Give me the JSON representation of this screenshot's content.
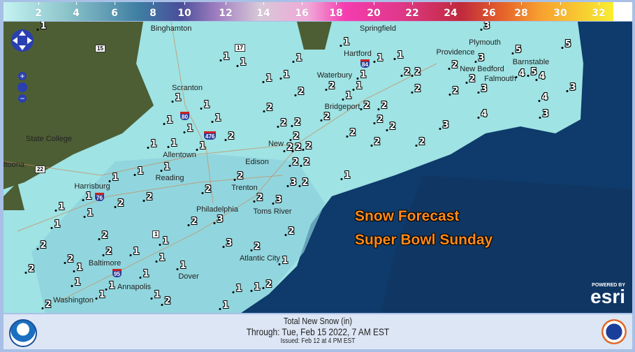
{
  "legend": {
    "ticks": [
      "2",
      "4",
      "6",
      "8",
      "10",
      "12",
      "14",
      "16",
      "18",
      "20",
      "22",
      "24",
      "26",
      "28",
      "30",
      "32"
    ],
    "colors": {
      "low": "#c4f3f1",
      "mid": "#4a4f9a",
      "pink": "#f53cb0",
      "red": "#c02a3c",
      "high": "#f8ee30"
    }
  },
  "map": {
    "headline": [
      "Snow Forecast",
      "Super Bowl Sunday"
    ],
    "headline_color": "#ff8a1a",
    "cities": [
      "Binghamton",
      "Springfield",
      "Hartford",
      "Providence",
      "Plymouth",
      "Barnstable",
      "New Bedford",
      "Falmouth",
      "Waterbury",
      "Scranton",
      "Bridgeport",
      "State College",
      "Allentown",
      "Edison",
      "ltoona",
      "Harrisburg",
      "Reading",
      "Trenton",
      "Philadelphia",
      "Toms River",
      "Atlantic City",
      "Baltimore",
      "Dover",
      "Annapolis",
      "Washington",
      "New"
    ],
    "snow_values": [
      1,
      3,
      5,
      5,
      1,
      1,
      1,
      1,
      1,
      2,
      5,
      3,
      1,
      1,
      1,
      1,
      2,
      1,
      2,
      2,
      2,
      4,
      4,
      3,
      3,
      1,
      2,
      1,
      2,
      2,
      2,
      4,
      1,
      2,
      2,
      1,
      1,
      2,
      2,
      2,
      4,
      3,
      3,
      1,
      2,
      2,
      2,
      2,
      2,
      1,
      1,
      2,
      2,
      2,
      2,
      2,
      2,
      2,
      1,
      1,
      1,
      1,
      2,
      3,
      2,
      1,
      1,
      2,
      2,
      2,
      2,
      3,
      1,
      3,
      1,
      2,
      1,
      2,
      2,
      1,
      3,
      2,
      2,
      1,
      2,
      2,
      1,
      1,
      2,
      1,
      1,
      1,
      1,
      2,
      1,
      1,
      1,
      1,
      2,
      2,
      1,
      1
    ],
    "highways": [
      "15",
      "17",
      "80",
      "476",
      "22",
      "76",
      "1",
      "95",
      "84"
    ],
    "zoom_controls": {
      "in": "+",
      "out": "−"
    },
    "attribution": {
      "powered": "POWERED BY",
      "brand": "esri"
    }
  },
  "footer": {
    "title": "Total New Snow (in)",
    "through": "Through: Tue, Feb 15 2022,   7 AM EST",
    "issued": "Issued: Feb 12 at 4 PM EST"
  }
}
